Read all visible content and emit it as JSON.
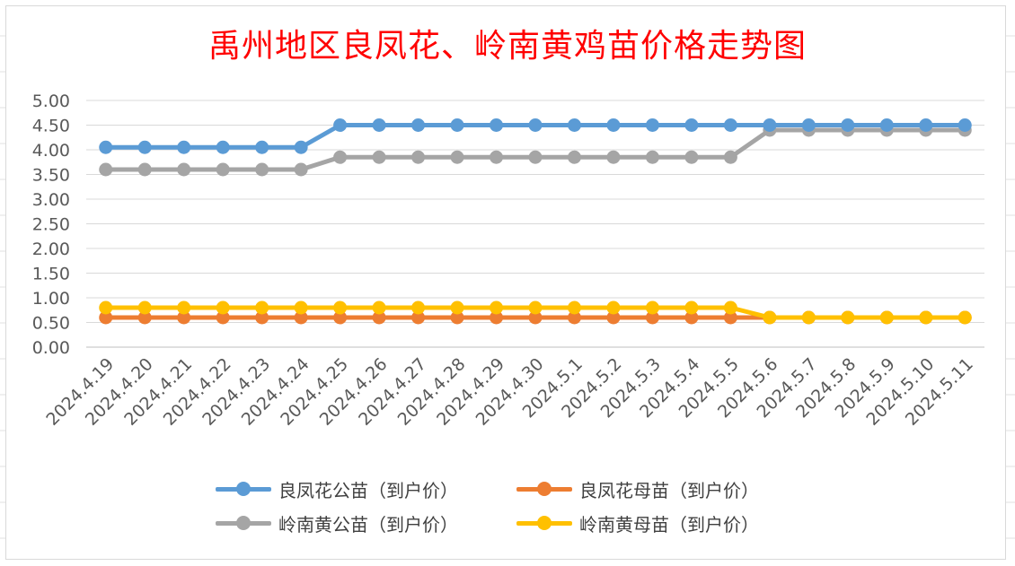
{
  "chart_data": {
    "type": "line",
    "title": "禹州地区良凤花、岭南黄鸡苗价格走势图",
    "categories": [
      "2024.4.19",
      "2024.4.20",
      "2024.4.21",
      "2024.4.22",
      "2024.4.23",
      "2024.4.24",
      "2024.4.25",
      "2024.4.26",
      "2024.4.27",
      "2024.4.28",
      "2024.4.29",
      "2024.4.30",
      "2024.5.1",
      "2024.5.2",
      "2024.5.3",
      "2024.5.4",
      "2024.5.5",
      "2024.5.6",
      "2024.5.7",
      "2024.5.8",
      "2024.5.9",
      "2024.5.10",
      "2024.5.11"
    ],
    "ylim": [
      0,
      5
    ],
    "yticks": [
      "0.00",
      "0.50",
      "1.00",
      "1.50",
      "2.00",
      "2.50",
      "3.00",
      "3.50",
      "4.00",
      "4.50",
      "5.00"
    ],
    "grid": true,
    "legend_position": "bottom",
    "series": [
      {
        "name": "良凤花公苗（到户价）",
        "color": "#5b9bd5",
        "values": [
          4.05,
          4.05,
          4.05,
          4.05,
          4.05,
          4.05,
          4.5,
          4.5,
          4.5,
          4.5,
          4.5,
          4.5,
          4.5,
          4.5,
          4.5,
          4.5,
          4.5,
          4.5,
          4.5,
          4.5,
          4.5,
          4.5,
          4.5
        ]
      },
      {
        "name": "良凤花母苗（到户价）",
        "color": "#ed7d31",
        "values": [
          0.6,
          0.6,
          0.6,
          0.6,
          0.6,
          0.6,
          0.6,
          0.6,
          0.6,
          0.6,
          0.6,
          0.6,
          0.6,
          0.6,
          0.6,
          0.6,
          0.6,
          0.6,
          0.6,
          0.6,
          0.6,
          0.6,
          0.6
        ]
      },
      {
        "name": "岭南黄公苗（到户价）",
        "color": "#a5a5a5",
        "values": [
          3.6,
          3.6,
          3.6,
          3.6,
          3.6,
          3.6,
          3.85,
          3.85,
          3.85,
          3.85,
          3.85,
          3.85,
          3.85,
          3.85,
          3.85,
          3.85,
          3.85,
          4.4,
          4.4,
          4.4,
          4.4,
          4.4,
          4.4
        ]
      },
      {
        "name": "岭南黄母苗（到户价）",
        "color": "#ffc000",
        "values": [
          0.8,
          0.8,
          0.8,
          0.8,
          0.8,
          0.8,
          0.8,
          0.8,
          0.8,
          0.8,
          0.8,
          0.8,
          0.8,
          0.8,
          0.8,
          0.8,
          0.8,
          0.6,
          0.6,
          0.6,
          0.6,
          0.6,
          0.6
        ]
      }
    ]
  }
}
